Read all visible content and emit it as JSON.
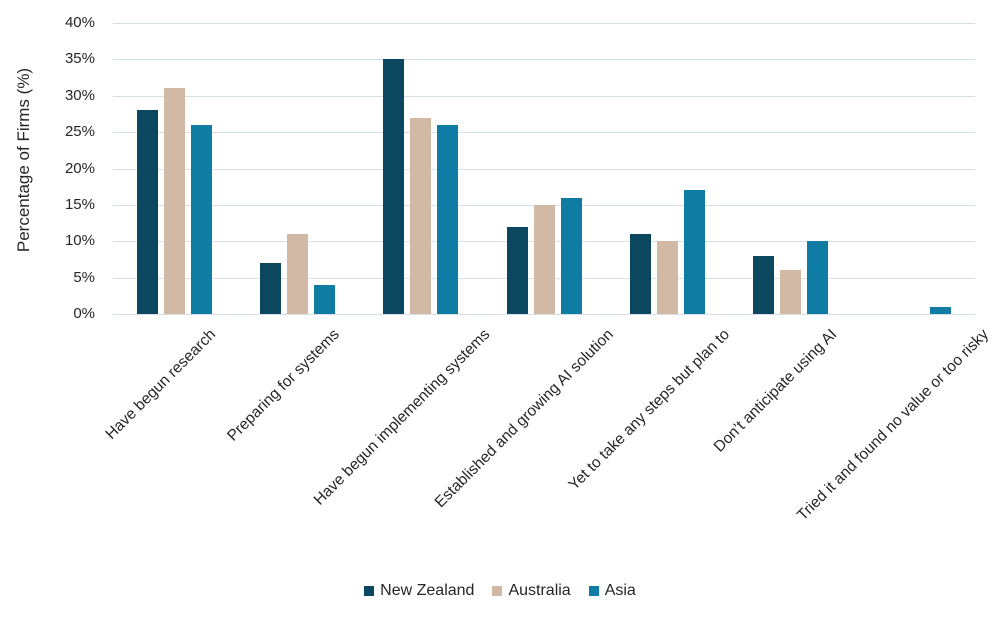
{
  "chart_data": {
    "type": "bar",
    "title": "",
    "xlabel": "",
    "ylabel": "Percentage of Firms (%)",
    "ylim": [
      0,
      40
    ],
    "yticks": [
      "0%",
      "5%",
      "10%",
      "15%",
      "20%",
      "25%",
      "30%",
      "35%",
      "40%"
    ],
    "grid": true,
    "legend_position": "bottom",
    "categories": [
      "Have begun research",
      "Preparing for systems",
      "Have begun implementing systems",
      "Established and growing AI solution",
      "Yet to take any steps but plan to",
      "Don’t anticipate using AI",
      "Tried it and found no value or too risky"
    ],
    "series": [
      {
        "name": "New Zealand",
        "color": "#0b475e",
        "values": [
          28,
          7,
          35,
          12,
          11,
          8,
          0
        ]
      },
      {
        "name": "Australia",
        "color": "#d2b9a6",
        "values": [
          31,
          11,
          27,
          15,
          10,
          6,
          0
        ]
      },
      {
        "name": "Asia",
        "color": "#0e7ca3",
        "values": [
          26,
          4,
          26,
          16,
          17,
          10,
          1
        ]
      }
    ]
  },
  "legend": {
    "items": [
      {
        "label": "New Zealand",
        "color": "#0b475e"
      },
      {
        "label": "Australia",
        "color": "#d2b9a6"
      },
      {
        "label": "Asia",
        "color": "#0e7ca3"
      }
    ]
  }
}
